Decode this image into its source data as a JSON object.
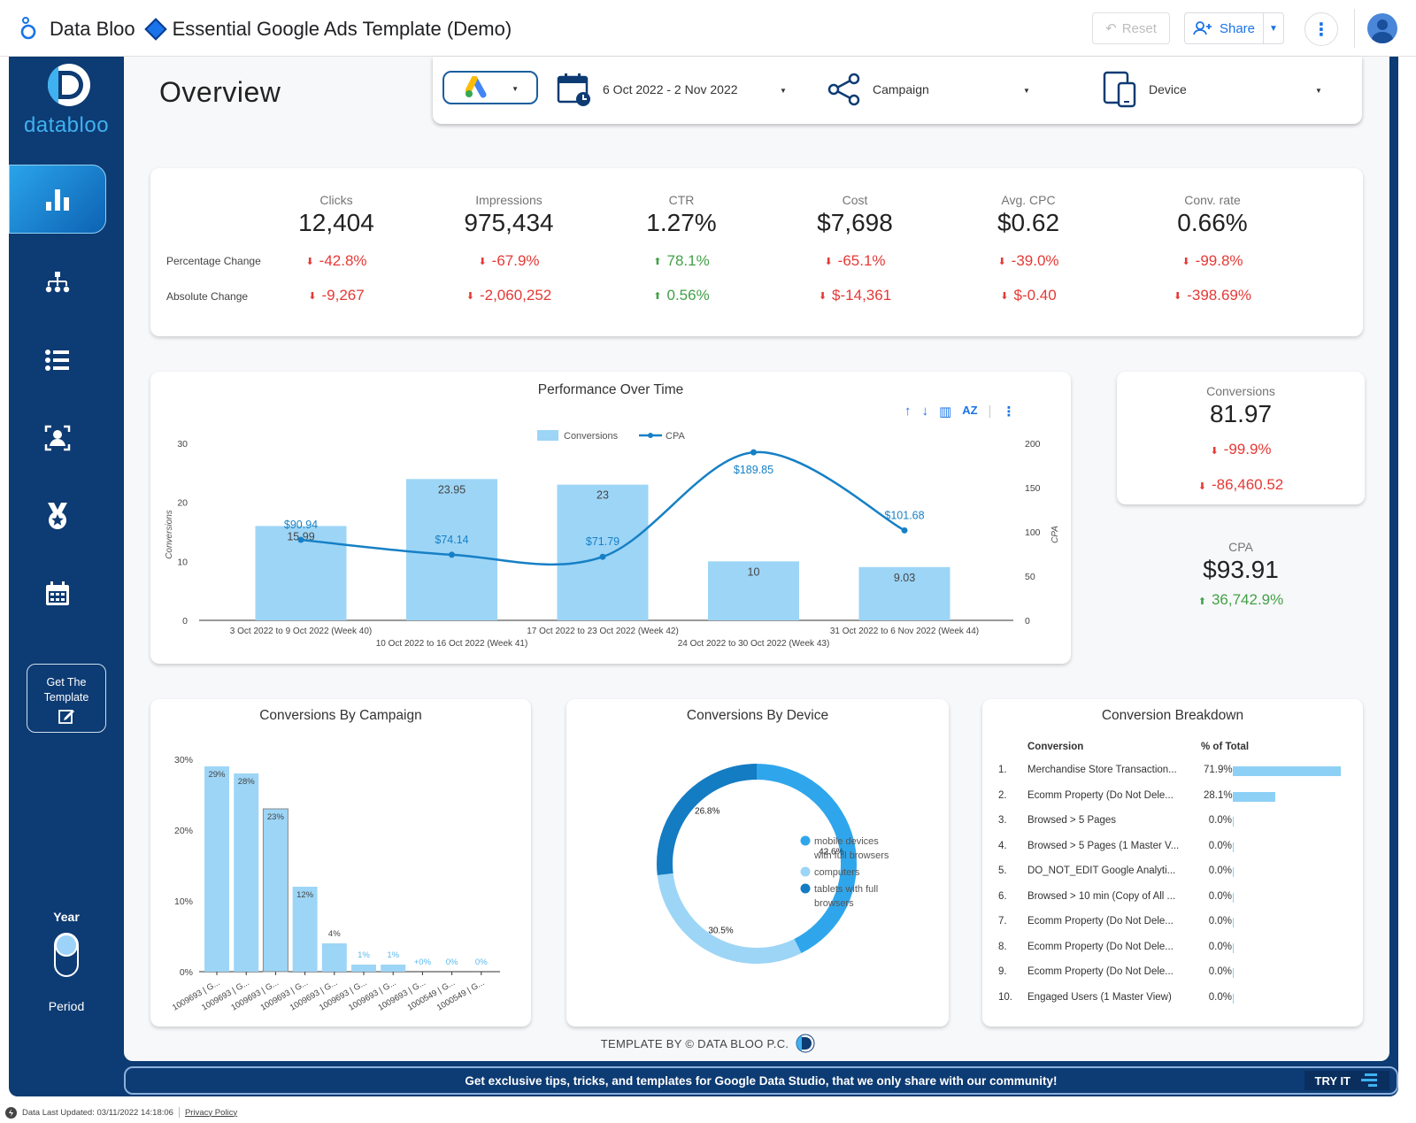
{
  "header": {
    "app_name": "Data Bloo",
    "report_title": "Essential Google Ads Template (Demo)",
    "reset_label": "Reset",
    "share_label": "Share"
  },
  "sidebar": {
    "brand_name": "databloo",
    "nav_items": [
      {
        "icon": "bar-chart-icon",
        "active": true
      },
      {
        "icon": "hierarchy-icon",
        "active": false
      },
      {
        "icon": "list-icon",
        "active": false
      },
      {
        "icon": "audience-icon",
        "active": false
      },
      {
        "icon": "medal-icon",
        "active": false
      },
      {
        "icon": "calendar-icon",
        "active": false
      }
    ],
    "cta_line1": "Get The",
    "cta_line2": "Template",
    "year_label": "Year",
    "period_label": "Period"
  },
  "page": {
    "title": "Overview"
  },
  "filters": {
    "date_range": "6 Oct 2022 - 2 Nov 2022",
    "campaign": "Campaign",
    "device": "Device"
  },
  "kpis": {
    "row_labels": [
      "Percentage Change",
      "Absolute Change"
    ],
    "items": [
      {
        "label": "Clicks",
        "value": "12,404",
        "pct": "-42.8%",
        "abs": "-9,267",
        "trend": "down"
      },
      {
        "label": "Impressions",
        "value": "975,434",
        "pct": "-67.9%",
        "abs": "-2,060,252",
        "trend": "down"
      },
      {
        "label": "CTR",
        "value": "1.27%",
        "pct": "78.1%",
        "abs": "0.56%",
        "trend": "up"
      },
      {
        "label": "Cost",
        "value": "$7,698",
        "pct": "-65.1%",
        "abs": "$-14,361",
        "trend": "down"
      },
      {
        "label": "Avg. CPC",
        "value": "$0.62",
        "pct": "-39.0%",
        "abs": "$-0.40",
        "trend": "down"
      },
      {
        "label": "Conv. rate",
        "value": "0.66%",
        "pct": "-99.8%",
        "abs": "-398.69%",
        "trend": "down"
      }
    ]
  },
  "performance": {
    "title": "Performance Over Time"
  },
  "conversions_scorecard": {
    "label": "Conversions",
    "value": "81.97",
    "pct": "-99.9%",
    "abs": "-86,460.52"
  },
  "cpa_scorecard": {
    "label": "CPA",
    "value": "$93.91",
    "pct": "36,742.9%"
  },
  "campaign_chart": {
    "title": "Conversions By Campaign"
  },
  "device_chart": {
    "title": "Conversions By Device"
  },
  "breakdown": {
    "title": "Conversion Breakdown",
    "col_conversion": "Conversion",
    "col_pct": "% of Total",
    "rows": [
      {
        "n": "1.",
        "name": "Merchandise Store Transaction...",
        "pct": "71.9%",
        "share": 0.719
      },
      {
        "n": "2.",
        "name": "Ecomm Property (Do Not Dele...",
        "pct": "28.1%",
        "share": 0.281
      },
      {
        "n": "3.",
        "name": "Browsed > 5 Pages",
        "pct": "0.0%",
        "share": 0
      },
      {
        "n": "4.",
        "name": "Browsed > 5 Pages (1 Master V...",
        "pct": "0.0%",
        "share": 0
      },
      {
        "n": "5.",
        "name": "DO_NOT_EDIT Google Analyti...",
        "pct": "0.0%",
        "share": 0
      },
      {
        "n": "6.",
        "name": "Browsed > 10 min (Copy of All ...",
        "pct": "0.0%",
        "share": 0
      },
      {
        "n": "7.",
        "name": "Ecomm Property (Do Not Dele...",
        "pct": "0.0%",
        "share": 0
      },
      {
        "n": "8.",
        "name": "Ecomm Property (Do Not Dele...",
        "pct": "0.0%",
        "share": 0
      },
      {
        "n": "9.",
        "name": "Ecomm Property (Do Not Dele...",
        "pct": "0.0%",
        "share": 0
      },
      {
        "n": "10.",
        "name": "Engaged Users (1 Master View)",
        "pct": "0.0%",
        "share": 0
      }
    ]
  },
  "footer": {
    "credit": "TEMPLATE BY © DATA BLOO P.C.",
    "community_text": "Get exclusive tips, tricks, and templates for Google Data Studio, that we only share with our community!",
    "try_it": "TRY IT",
    "last_updated": "Data Last Updated: 03/11/2022 14:18:06",
    "privacy": "Privacy Policy"
  },
  "colors": {
    "accent": "#0d3b73",
    "bar": "#9dd5f6",
    "line": "#1680c6",
    "negative": "#e53935",
    "positive": "#43a047"
  },
  "chart_data": [
    {
      "type": "bar",
      "title": "Performance Over Time",
      "categories": [
        "3 Oct 2022 to 9 Oct 2022 (Week 40)",
        "10 Oct 2022 to 16 Oct 2022 (Week 41)",
        "17 Oct 2022 to 23 Oct 2022 (Week 42)",
        "24 Oct 2022 to 30 Oct 2022 (Week 43)",
        "31 Oct 2022 to 6 Nov 2022 (Week 44)"
      ],
      "series": [
        {
          "name": "Conversions",
          "kind": "bar",
          "axis": "left",
          "values": [
            15.99,
            23.95,
            23,
            10,
            9.03
          ],
          "labels": [
            "15.99",
            "23.95",
            "23",
            "10",
            "9.03"
          ]
        },
        {
          "name": "CPA",
          "kind": "line",
          "axis": "right",
          "values": [
            90.94,
            74.14,
            71.79,
            189.85,
            101.68
          ],
          "labels": [
            "$90.94",
            "$74.14",
            "$71.79",
            "$189.85",
            "$101.68"
          ]
        }
      ],
      "ylabel": "Conversions",
      "y2label": "CPA",
      "ylim": [
        0,
        30
      ],
      "y2lim": [
        0,
        200
      ],
      "yticks": [
        "0",
        "10",
        "20",
        "30"
      ],
      "y2ticks": [
        "0",
        "50",
        "100",
        "150",
        "200"
      ],
      "legend": "top-center"
    },
    {
      "type": "bar",
      "title": "Conversions By Campaign",
      "categories": [
        "1009693 | G...",
        "1009693 | G...",
        "1009693 | G...",
        "1009693 | G...",
        "1009693 | G...",
        "1009693 | G...",
        "1009693 | G...",
        "1009693 | G...",
        "1000549 | G...",
        "1000549 | G..."
      ],
      "values": [
        29,
        28,
        23,
        12,
        4,
        1,
        1,
        0,
        0,
        0
      ],
      "labels": [
        "29%",
        "28%",
        "23%",
        "12%",
        "4%",
        "1%",
        "1%",
        "+0%",
        "0%",
        "0%"
      ],
      "ylim": [
        0,
        30
      ],
      "yticks": [
        "0%",
        "10%",
        "20%",
        "30%"
      ]
    },
    {
      "type": "pie",
      "title": "Conversions By Device",
      "series": [
        {
          "name": "mobile devices with full browsers",
          "value": 42.6,
          "label": "42.6%",
          "color": "#2fa6ec"
        },
        {
          "name": "computers",
          "value": 30.5,
          "label": "30.5%",
          "color": "#9dd5f6"
        },
        {
          "name": "tablets with full browsers",
          "value": 26.8,
          "label": "26.8%",
          "color": "#137cc2"
        }
      ],
      "legend": "right"
    }
  ]
}
